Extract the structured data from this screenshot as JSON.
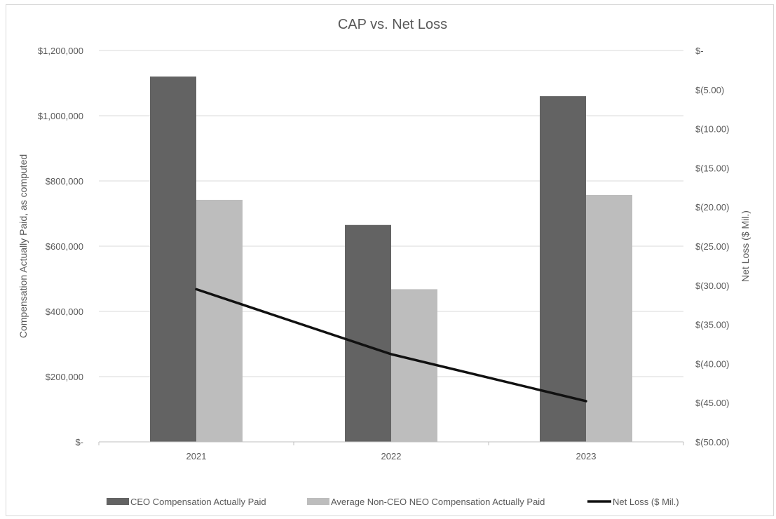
{
  "chart_data": {
    "type": "bar",
    "title": "CAP vs. Net Loss",
    "categories": [
      "2021",
      "2022",
      "2023"
    ],
    "ylabel": "Compensation Actually Paid, as computed",
    "y2label": "Net Loss ($ Mil.)",
    "ylim": [
      0,
      1200000
    ],
    "y2lim": [
      -50,
      0
    ],
    "y_ticks": [
      {
        "value": 0,
        "label": "$-"
      },
      {
        "value": 200000,
        "label": "$200,000"
      },
      {
        "value": 400000,
        "label": "$400,000"
      },
      {
        "value": 600000,
        "label": "$600,000"
      },
      {
        "value": 800000,
        "label": "$800,000"
      },
      {
        "value": 1000000,
        "label": "$1,000,000"
      },
      {
        "value": 1200000,
        "label": "$1,200,000"
      }
    ],
    "y2_ticks": [
      {
        "value": 0,
        "label": "$-"
      },
      {
        "value": -5,
        "label": "$(5.00)"
      },
      {
        "value": -10,
        "label": "$(10.00)"
      },
      {
        "value": -15,
        "label": "$(15.00)"
      },
      {
        "value": -20,
        "label": "$(20.00)"
      },
      {
        "value": -25,
        "label": "$(25.00)"
      },
      {
        "value": -30,
        "label": "$(30.00)"
      },
      {
        "value": -35,
        "label": "$(35.00)"
      },
      {
        "value": -40,
        "label": "$(40.00)"
      },
      {
        "value": -45,
        "label": "$(45.00)"
      },
      {
        "value": -50,
        "label": "$(50.00)"
      }
    ],
    "series": [
      {
        "name": "CEO Compensation Actually Paid",
        "kind": "bar",
        "axis": "left",
        "color": "#636363",
        "values": [
          1120000,
          665000,
          1060000
        ]
      },
      {
        "name": "Average Non-CEO NEO Compensation Actually Paid",
        "kind": "bar",
        "axis": "left",
        "color": "#bdbdbd",
        "values": [
          742000,
          468000,
          757000
        ]
      },
      {
        "name": "Net Loss ($ Mil.)",
        "kind": "line",
        "axis": "right",
        "color": "#111111",
        "values": [
          -30.5,
          -38.8,
          -44.8
        ]
      }
    ],
    "grid": true,
    "legend_position": "bottom"
  }
}
